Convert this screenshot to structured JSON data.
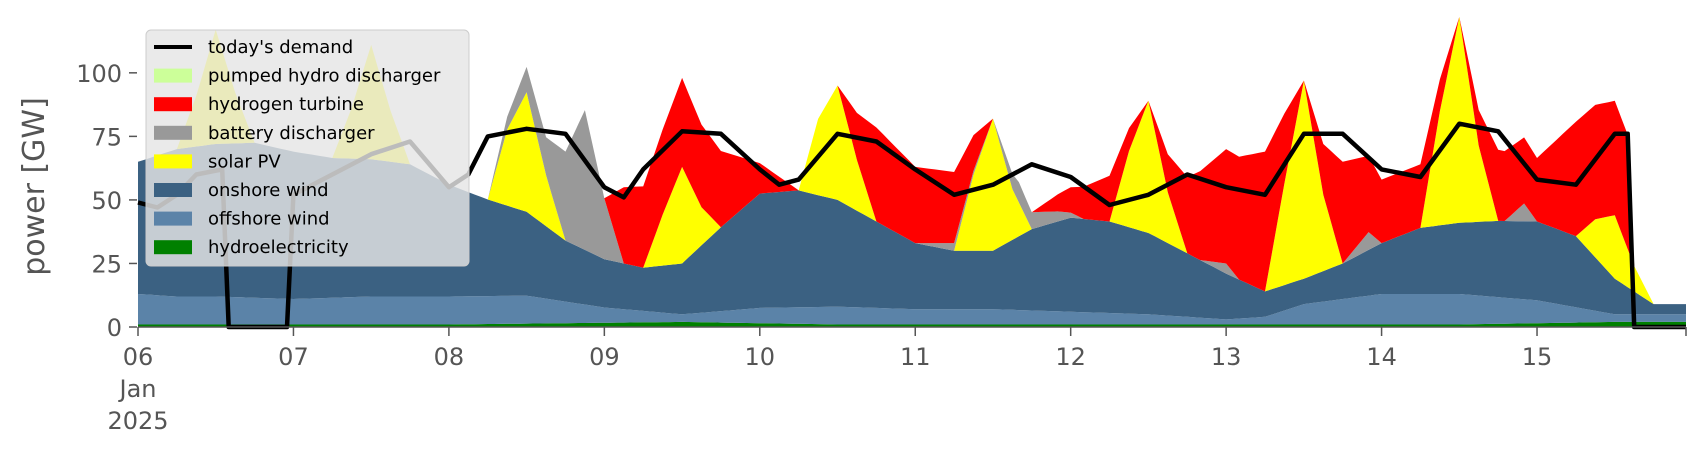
{
  "chart_data": {
    "type": "area",
    "xlabel": "",
    "ylabel": "power [GW]",
    "ylim": [
      0,
      120
    ],
    "xlim": [
      "2025-01-06T00:00",
      "2025-01-15T23:00"
    ],
    "y_ticks": [
      0,
      25,
      50,
      75,
      100
    ],
    "y_tick_labels": [
      "0",
      "25",
      "50",
      "75",
      "100"
    ],
    "x_ticks": [
      "2025-01-06",
      "2025-01-07",
      "2025-01-08",
      "2025-01-09",
      "2025-01-10",
      "2025-01-11",
      "2025-01-12",
      "2025-01-13",
      "2025-01-14",
      "2025-01-15"
    ],
    "x_tick_labels": [
      "06",
      "07",
      "08",
      "09",
      "10",
      "11",
      "12",
      "13",
      "14",
      "15"
    ],
    "x_tick_month": "Jan",
    "x_tick_year": "2025",
    "grid": false,
    "legend_position": "upper-left",
    "legend": [
      "today's demand",
      "pumped hydro discharger",
      "hydrogen turbine",
      "battery discharger",
      "solar PV",
      "onshore wind",
      "offshore wind",
      "hydroelectricity"
    ],
    "stack_series": [
      {
        "name": "hydroelectricity",
        "color": "#008000",
        "points": [
          [
            "2025-01-06T00:00",
            1
          ],
          [
            "2025-01-08T00:00",
            1
          ],
          [
            "2025-01-09T12:00",
            2
          ],
          [
            "2025-01-10T12:00",
            1
          ],
          [
            "2025-01-12T12:00",
            1
          ],
          [
            "2025-01-13T12:00",
            1
          ],
          [
            "2025-01-14T12:00",
            1
          ],
          [
            "2025-01-15T12:00",
            2
          ],
          [
            "2025-01-15T23:00",
            2
          ]
        ]
      },
      {
        "name": "offshore wind",
        "color": "#5b83a8",
        "points": [
          [
            "2025-01-06T00:00",
            12
          ],
          [
            "2025-01-06T06:00",
            11
          ],
          [
            "2025-01-06T12:00",
            11
          ],
          [
            "2025-01-07T00:00",
            10
          ],
          [
            "2025-01-07T12:00",
            11
          ],
          [
            "2025-01-08T00:00",
            11
          ],
          [
            "2025-01-08T12:00",
            11
          ],
          [
            "2025-01-09T00:00",
            6
          ],
          [
            "2025-01-09T12:00",
            3
          ],
          [
            "2025-01-10T00:00",
            6
          ],
          [
            "2025-01-10T12:00",
            7
          ],
          [
            "2025-01-11T00:00",
            6
          ],
          [
            "2025-01-11T12:00",
            6
          ],
          [
            "2025-01-12T00:00",
            5
          ],
          [
            "2025-01-12T12:00",
            4
          ],
          [
            "2025-01-13T00:00",
            2
          ],
          [
            "2025-01-13T06:00",
            3
          ],
          [
            "2025-01-13T12:00",
            8
          ],
          [
            "2025-01-14T00:00",
            12
          ],
          [
            "2025-01-14T12:00",
            12
          ],
          [
            "2025-01-15T00:00",
            9
          ],
          [
            "2025-01-15T12:00",
            3
          ],
          [
            "2025-01-15T23:00",
            3
          ]
        ]
      },
      {
        "name": "onshore wind",
        "color": "#3b6182",
        "points": [
          [
            "2025-01-06T00:00",
            52
          ],
          [
            "2025-01-06T06:00",
            58
          ],
          [
            "2025-01-06T12:00",
            60
          ],
          [
            "2025-01-06T18:00",
            61
          ],
          [
            "2025-01-07T00:00",
            58
          ],
          [
            "2025-01-07T06:00",
            55
          ],
          [
            "2025-01-07T12:00",
            54
          ],
          [
            "2025-01-07T18:00",
            52
          ],
          [
            "2025-01-08T00:00",
            44
          ],
          [
            "2025-01-08T06:00",
            38
          ],
          [
            "2025-01-08T12:00",
            33
          ],
          [
            "2025-01-08T18:00",
            24
          ],
          [
            "2025-01-09T00:00",
            19
          ],
          [
            "2025-01-09T06:00",
            17
          ],
          [
            "2025-01-09T12:00",
            20
          ],
          [
            "2025-01-09T18:00",
            33
          ],
          [
            "2025-01-10T00:00",
            45
          ],
          [
            "2025-01-10T06:00",
            46
          ],
          [
            "2025-01-10T12:00",
            42
          ],
          [
            "2025-01-10T18:00",
            34
          ],
          [
            "2025-01-11T00:00",
            26
          ],
          [
            "2025-01-11T06:00",
            23
          ],
          [
            "2025-01-11T12:00",
            23
          ],
          [
            "2025-01-11T18:00",
            32
          ],
          [
            "2025-01-12T00:00",
            37
          ],
          [
            "2025-01-12T06:00",
            36
          ],
          [
            "2025-01-12T12:00",
            32
          ],
          [
            "2025-01-12T18:00",
            25
          ],
          [
            "2025-01-13T00:00",
            18
          ],
          [
            "2025-01-13T06:00",
            10
          ],
          [
            "2025-01-13T12:00",
            10
          ],
          [
            "2025-01-13T18:00",
            14
          ],
          [
            "2025-01-14T00:00",
            20
          ],
          [
            "2025-01-14T06:00",
            26
          ],
          [
            "2025-01-14T12:00",
            28
          ],
          [
            "2025-01-14T18:00",
            30
          ],
          [
            "2025-01-15T00:00",
            31
          ],
          [
            "2025-01-15T06:00",
            28
          ],
          [
            "2025-01-15T12:00",
            14
          ],
          [
            "2025-01-15T18:00",
            4
          ],
          [
            "2025-01-15T23:00",
            4
          ]
        ]
      },
      {
        "name": "solar PV",
        "color": "#ffff00",
        "points": [
          [
            "2025-01-06T00:00",
            0
          ],
          [
            "2025-01-06T06:00",
            0
          ],
          [
            "2025-01-06T09:00",
            20
          ],
          [
            "2025-01-06T12:00",
            45
          ],
          [
            "2025-01-06T15:00",
            20
          ],
          [
            "2025-01-06T18:00",
            0
          ],
          [
            "2025-01-07T06:00",
            0
          ],
          [
            "2025-01-07T09:00",
            20
          ],
          [
            "2025-01-07T12:00",
            45
          ],
          [
            "2025-01-07T15:00",
            20
          ],
          [
            "2025-01-07T18:00",
            0
          ],
          [
            "2025-01-08T06:00",
            0
          ],
          [
            "2025-01-08T09:00",
            30
          ],
          [
            "2025-01-08T12:00",
            47
          ],
          [
            "2025-01-08T15:00",
            20
          ],
          [
            "2025-01-08T18:00",
            0
          ],
          [
            "2025-01-09T06:00",
            0
          ],
          [
            "2025-01-09T09:00",
            20
          ],
          [
            "2025-01-09T12:00",
            38
          ],
          [
            "2025-01-09T15:00",
            15
          ],
          [
            "2025-01-09T18:00",
            0
          ],
          [
            "2025-01-10T06:00",
            0
          ],
          [
            "2025-01-10T09:00",
            30
          ],
          [
            "2025-01-10T12:00",
            45
          ],
          [
            "2025-01-10T15:00",
            20
          ],
          [
            "2025-01-10T18:00",
            0
          ],
          [
            "2025-01-11T06:00",
            0
          ],
          [
            "2025-01-11T09:00",
            30
          ],
          [
            "2025-01-11T12:00",
            52
          ],
          [
            "2025-01-11T15:00",
            20
          ],
          [
            "2025-01-11T18:00",
            0
          ],
          [
            "2025-01-12T06:00",
            0
          ],
          [
            "2025-01-12T09:00",
            30
          ],
          [
            "2025-01-12T12:00",
            52
          ],
          [
            "2025-01-12T15:00",
            20
          ],
          [
            "2025-01-12T18:00",
            0
          ],
          [
            "2025-01-13T06:00",
            0
          ],
          [
            "2025-01-13T09:00",
            40
          ],
          [
            "2025-01-13T12:00",
            78
          ],
          [
            "2025-01-13T15:00",
            30
          ],
          [
            "2025-01-13T18:00",
            0
          ],
          [
            "2025-01-14T06:00",
            0
          ],
          [
            "2025-01-14T09:00",
            45
          ],
          [
            "2025-01-14T12:00",
            81
          ],
          [
            "2025-01-14T15:00",
            30
          ],
          [
            "2025-01-14T18:00",
            0
          ],
          [
            "2025-01-15T06:00",
            0
          ],
          [
            "2025-01-15T09:00",
            15
          ],
          [
            "2025-01-15T12:00",
            25
          ],
          [
            "2025-01-15T15:00",
            10
          ],
          [
            "2025-01-15T18:00",
            0
          ],
          [
            "2025-01-15T23:00",
            0
          ]
        ]
      },
      {
        "name": "battery discharger",
        "color": "#999999",
        "points": [
          [
            "2025-01-06T00:00",
            0
          ],
          [
            "2025-01-08T06:00",
            0
          ],
          [
            "2025-01-08T15:00",
            15
          ],
          [
            "2025-01-08T21:00",
            55
          ],
          [
            "2025-01-09T00:00",
            24
          ],
          [
            "2025-01-09T03:00",
            0
          ],
          [
            "2025-01-11T00:00",
            0
          ],
          [
            "2025-01-11T06:00",
            3
          ],
          [
            "2025-01-11T12:00",
            0
          ],
          [
            "2025-01-11T16:00",
            8
          ],
          [
            "2025-01-11T22:00",
            4
          ],
          [
            "2025-01-12T02:00",
            0
          ],
          [
            "2025-01-12T20:00",
            0
          ],
          [
            "2025-01-13T00:00",
            4
          ],
          [
            "2025-01-13T02:00",
            0
          ],
          [
            "2025-01-13T18:00",
            0
          ],
          [
            "2025-01-13T22:00",
            7
          ],
          [
            "2025-01-14T00:00",
            0
          ],
          [
            "2025-01-14T19:00",
            0
          ],
          [
            "2025-01-14T22:00",
            7
          ],
          [
            "2025-01-15T00:00",
            0
          ],
          [
            "2025-01-15T23:00",
            0
          ]
        ]
      },
      {
        "name": "hydrogen turbine",
        "color": "#ff0000",
        "points": [
          [
            "2025-01-06T00:00",
            0
          ],
          [
            "2025-01-08T00:00",
            0
          ],
          [
            "2025-01-08T06:00",
            0
          ],
          [
            "2025-01-09T00:00",
            0
          ],
          [
            "2025-01-09T03:00",
            30
          ],
          [
            "2025-01-09T06:00",
            32
          ],
          [
            "2025-01-09T12:00",
            35
          ],
          [
            "2025-01-09T18:00",
            30
          ],
          [
            "2025-01-10T00:00",
            12
          ],
          [
            "2025-01-10T06:00",
            0
          ],
          [
            "2025-01-10T12:00",
            0
          ],
          [
            "2025-01-10T18:00",
            37
          ],
          [
            "2025-01-11T00:00",
            30
          ],
          [
            "2025-01-11T06:00",
            28
          ],
          [
            "2025-01-11T12:00",
            0
          ],
          [
            "2025-01-11T18:00",
            0
          ],
          [
            "2025-01-12T00:00",
            10
          ],
          [
            "2025-01-12T06:00",
            18
          ],
          [
            "2025-01-12T12:00",
            0
          ],
          [
            "2025-01-12T18:00",
            30
          ],
          [
            "2025-01-13T00:00",
            45
          ],
          [
            "2025-01-13T06:00",
            55
          ],
          [
            "2025-01-13T12:00",
            0
          ],
          [
            "2025-01-13T18:00",
            40
          ],
          [
            "2025-01-14T00:00",
            25
          ],
          [
            "2025-01-14T06:00",
            25
          ],
          [
            "2025-01-14T12:00",
            0
          ],
          [
            "2025-01-14T18:00",
            28
          ],
          [
            "2025-01-15T00:00",
            25
          ],
          [
            "2025-01-15T06:00",
            45
          ],
          [
            "2025-01-15T12:00",
            45
          ],
          [
            "2025-01-15T14:00",
            45
          ],
          [
            "2025-01-15T15:00",
            0
          ],
          [
            "2025-01-15T23:00",
            0
          ]
        ]
      },
      {
        "name": "pumped hydro discharger",
        "color": "#ccff99",
        "points": [
          [
            "2025-01-06T00:00",
            0
          ],
          [
            "2025-01-15T23:00",
            0
          ]
        ]
      }
    ],
    "demand_series": {
      "name": "today's demand",
      "color": "#000000",
      "points": [
        [
          "2025-01-06T00:00",
          49
        ],
        [
          "2025-01-06T03:00",
          47
        ],
        [
          "2025-01-06T06:00",
          52
        ],
        [
          "2025-01-06T09:00",
          60
        ],
        [
          "2025-01-06T13:00",
          62
        ],
        [
          "2025-01-06T14:00",
          0
        ],
        [
          "2025-01-06T23:00",
          0
        ],
        [
          "2025-01-07T00:00",
          52
        ],
        [
          "2025-01-07T06:00",
          60
        ],
        [
          "2025-01-07T12:00",
          68
        ],
        [
          "2025-01-07T18:00",
          73
        ],
        [
          "2025-01-08T00:00",
          55
        ],
        [
          "2025-01-08T03:00",
          60
        ],
        [
          "2025-01-08T06:00",
          75
        ],
        [
          "2025-01-08T12:00",
          78
        ],
        [
          "2025-01-08T18:00",
          76
        ],
        [
          "2025-01-09T00:00",
          55
        ],
        [
          "2025-01-09T03:00",
          51
        ],
        [
          "2025-01-09T06:00",
          62
        ],
        [
          "2025-01-09T12:00",
          77
        ],
        [
          "2025-01-09T18:00",
          76
        ],
        [
          "2025-01-10T00:00",
          62
        ],
        [
          "2025-01-10T03:00",
          56
        ],
        [
          "2025-01-10T06:00",
          58
        ],
        [
          "2025-01-10T12:00",
          76
        ],
        [
          "2025-01-10T18:00",
          73
        ],
        [
          "2025-01-11T00:00",
          62
        ],
        [
          "2025-01-11T06:00",
          52
        ],
        [
          "2025-01-11T12:00",
          56
        ],
        [
          "2025-01-11T18:00",
          64
        ],
        [
          "2025-01-12T00:00",
          59
        ],
        [
          "2025-01-12T06:00",
          48
        ],
        [
          "2025-01-12T12:00",
          52
        ],
        [
          "2025-01-12T18:00",
          60
        ],
        [
          "2025-01-13T00:00",
          55
        ],
        [
          "2025-01-13T06:00",
          52
        ],
        [
          "2025-01-13T12:00",
          76
        ],
        [
          "2025-01-13T18:00",
          76
        ],
        [
          "2025-01-14T00:00",
          62
        ],
        [
          "2025-01-14T06:00",
          59
        ],
        [
          "2025-01-14T12:00",
          80
        ],
        [
          "2025-01-14T18:00",
          77
        ],
        [
          "2025-01-15T00:00",
          58
        ],
        [
          "2025-01-15T06:00",
          56
        ],
        [
          "2025-01-15T12:00",
          76
        ],
        [
          "2025-01-15T14:00",
          76
        ],
        [
          "2025-01-15T15:00",
          0
        ],
        [
          "2025-01-15T23:00",
          0
        ]
      ]
    }
  }
}
